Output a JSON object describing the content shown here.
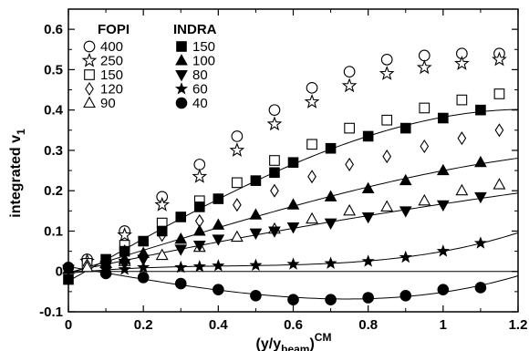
{
  "chart_data": {
    "type": "scatter",
    "xlabel": "(y/y_beam)^CM",
    "xlabel_parts": {
      "main": "(y/y",
      "sub": "beam",
      "close": ")",
      "sup": "CM"
    },
    "ylabel": "integrated v",
    "ylabel_sub": "1",
    "xlim": [
      0,
      1.2
    ],
    "ylim": [
      -0.1,
      0.65
    ],
    "xticks": [
      0,
      0.2,
      0.4,
      0.6,
      0.8,
      1,
      1.2
    ],
    "xtick_labels": [
      "0",
      "0.2",
      "0.4",
      "0.6",
      "0.8",
      "1",
      "1.2"
    ],
    "yticks": [
      -0.1,
      0,
      0.1,
      0.2,
      0.3,
      0.4,
      0.5,
      0.6
    ],
    "ytick_labels": [
      "-0.1",
      "0",
      "0.1",
      "0.2",
      "0.3",
      "0.4",
      "0.5",
      "0.6"
    ],
    "grid": false,
    "zero_line": true,
    "legend_groups": [
      {
        "title": "FOPI",
        "position": "top-left"
      },
      {
        "title": "INDRA",
        "position": "top-center"
      }
    ],
    "series": [
      {
        "name": "400",
        "group": "FOPI",
        "marker": "circle-open",
        "x": [
          0.05,
          0.15,
          0.25,
          0.35,
          0.45,
          0.55,
          0.65,
          0.75,
          0.85,
          0.95,
          1.05,
          1.15
        ],
        "y": [
          0.03,
          0.1,
          0.185,
          0.265,
          0.335,
          0.4,
          0.455,
          0.495,
          0.525,
          0.535,
          0.54,
          0.54
        ]
      },
      {
        "name": "250",
        "group": "FOPI",
        "marker": "star-open",
        "x": [
          0.05,
          0.15,
          0.25,
          0.35,
          0.45,
          0.55,
          0.65,
          0.75,
          0.85,
          0.95,
          1.05,
          1.15
        ],
        "y": [
          0.025,
          0.09,
          0.165,
          0.235,
          0.3,
          0.365,
          0.42,
          0.46,
          0.49,
          0.505,
          0.515,
          0.525
        ]
      },
      {
        "name": "150",
        "group": "FOPI",
        "marker": "square-open",
        "x": [
          0.05,
          0.15,
          0.25,
          0.35,
          0.45,
          0.55,
          0.65,
          0.75,
          0.85,
          0.95,
          1.05,
          1.15
        ],
        "y": [
          0.02,
          0.065,
          0.12,
          0.175,
          0.22,
          0.275,
          0.315,
          0.355,
          0.375,
          0.405,
          0.425,
          0.44
        ]
      },
      {
        "name": "120",
        "group": "FOPI",
        "marker": "diamond-open",
        "x": [
          0.05,
          0.15,
          0.25,
          0.35,
          0.45,
          0.55,
          0.65,
          0.75,
          0.85,
          0.95,
          1.05,
          1.15
        ],
        "y": [
          0.015,
          0.05,
          0.09,
          0.125,
          0.165,
          0.2,
          0.235,
          0.265,
          0.285,
          0.31,
          0.33,
          0.35
        ]
      },
      {
        "name": "90",
        "group": "FOPI",
        "marker": "triangle-open",
        "x": [
          0.05,
          0.15,
          0.25,
          0.35,
          0.45,
          0.55,
          0.65,
          0.75,
          0.85,
          0.95,
          1.05,
          1.15
        ],
        "y": [
          0.01,
          0.025,
          0.04,
          0.06,
          0.085,
          0.105,
          0.13,
          0.15,
          0.16,
          0.175,
          0.2,
          0.215
        ]
      },
      {
        "name": "150",
        "group": "INDRA",
        "marker": "square-filled",
        "fit": true,
        "x": [
          0,
          0.1,
          0.15,
          0.2,
          0.25,
          0.3,
          0.35,
          0.4,
          0.5,
          0.55,
          0.6,
          0.7,
          0.8,
          0.9,
          1.0,
          1.1
        ],
        "y": [
          -0.02,
          0.03,
          0.05,
          0.075,
          0.1,
          0.135,
          0.16,
          0.18,
          0.225,
          0.245,
          0.27,
          0.305,
          0.335,
          0.355,
          0.38,
          0.4
        ]
      },
      {
        "name": "100",
        "group": "INDRA",
        "marker": "triangle-filled",
        "fit": true,
        "x": [
          0,
          0.1,
          0.15,
          0.2,
          0.3,
          0.35,
          0.4,
          0.5,
          0.6,
          0.7,
          0.8,
          0.9,
          1.0,
          1.1
        ],
        "y": [
          0.005,
          0.02,
          0.03,
          0.045,
          0.08,
          0.1,
          0.115,
          0.14,
          0.165,
          0.185,
          0.205,
          0.225,
          0.25,
          0.27
        ]
      },
      {
        "name": "80",
        "group": "INDRA",
        "marker": "triangle-down-filled",
        "fit": true,
        "x": [
          0,
          0.1,
          0.15,
          0.2,
          0.3,
          0.35,
          0.4,
          0.5,
          0.55,
          0.6,
          0.7,
          0.8,
          0.9,
          1.0,
          1.1
        ],
        "y": [
          0.005,
          0.015,
          0.02,
          0.03,
          0.055,
          0.065,
          0.08,
          0.095,
          0.1,
          0.11,
          0.12,
          0.135,
          0.15,
          0.165,
          0.185
        ]
      },
      {
        "name": "60",
        "group": "INDRA",
        "marker": "star-filled",
        "fit": true,
        "x": [
          0.1,
          0.15,
          0.2,
          0.3,
          0.35,
          0.4,
          0.5,
          0.6,
          0.7,
          0.8,
          0.9,
          1.0,
          1.1
        ],
        "y": [
          0.005,
          0.005,
          0.01,
          0.01,
          0.012,
          0.014,
          0.015,
          0.018,
          0.02,
          0.025,
          0.035,
          0.05,
          0.07
        ]
      },
      {
        "name": "40",
        "group": "INDRA",
        "marker": "circle-filled",
        "fit": true,
        "x": [
          0,
          0.1,
          0.2,
          0.3,
          0.4,
          0.5,
          0.6,
          0.7,
          0.8,
          0.9,
          1.0,
          1.1
        ],
        "y": [
          0.01,
          -0.005,
          -0.015,
          -0.03,
          -0.045,
          -0.06,
          -0.07,
          -0.07,
          -0.065,
          -0.06,
          -0.045,
          -0.04
        ]
      }
    ]
  }
}
